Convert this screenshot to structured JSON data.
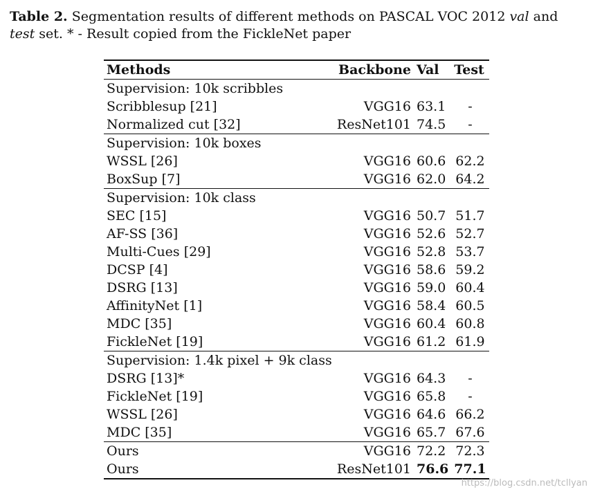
{
  "caption": {
    "label": "Table 2.",
    "text_1": " Segmentation results of different methods on PASCAL VOC 2012 ",
    "val_word": "val",
    "text_2": " and ",
    "test_word": "test",
    "text_3": " set. * - Result copied from the FickleNet paper"
  },
  "table": {
    "headers": {
      "methods": "Methods",
      "backbone": "Backbone",
      "val": "Val",
      "test": "Test"
    },
    "groups": [
      {
        "title": "Supervision: 10k scribbles",
        "rows": [
          {
            "method": "Scribblesup [21]",
            "backbone": "VGG16",
            "val": "63.1",
            "test": "-"
          },
          {
            "method": "Normalized cut [32]",
            "backbone": "ResNet101",
            "val": "74.5",
            "test": "-"
          }
        ]
      },
      {
        "title": "Supervision: 10k boxes",
        "rows": [
          {
            "method": "WSSL [26]",
            "backbone": "VGG16",
            "val": "60.6",
            "test": "62.2"
          },
          {
            "method": "BoxSup [7]",
            "backbone": "VGG16",
            "val": "62.0",
            "test": "64.2"
          }
        ]
      },
      {
        "title": "Supervision: 10k class",
        "rows": [
          {
            "method": "SEC [15]",
            "backbone": "VGG16",
            "val": "50.7",
            "test": "51.7"
          },
          {
            "method": "AF-SS [36]",
            "backbone": "VGG16",
            "val": "52.6",
            "test": "52.7"
          },
          {
            "method": "Multi-Cues [29]",
            "backbone": "VGG16",
            "val": "52.8",
            "test": "53.7"
          },
          {
            "method": "DCSP [4]",
            "backbone": "VGG16",
            "val": "58.6",
            "test": "59.2"
          },
          {
            "method": "DSRG [13]",
            "backbone": "VGG16",
            "val": "59.0",
            "test": "60.4"
          },
          {
            "method": "AffinityNet [1]",
            "backbone": "VGG16",
            "val": "58.4",
            "test": "60.5"
          },
          {
            "method": "MDC [35]",
            "backbone": "VGG16",
            "val": "60.4",
            "test": "60.8"
          },
          {
            "method": "FickleNet [19]",
            "backbone": "VGG16",
            "val": "61.2",
            "test": "61.9"
          }
        ]
      },
      {
        "title": "Supervision: 1.4k pixel + 9k class",
        "rows": [
          {
            "method": "DSRG [13]*",
            "backbone": "VGG16",
            "val": "64.3",
            "test": "-"
          },
          {
            "method": "FickleNet [19]",
            "backbone": "VGG16",
            "val": "65.8",
            "test": "-"
          },
          {
            "method": "WSSL [26]",
            "backbone": "VGG16",
            "val": "64.6",
            "test": "66.2"
          },
          {
            "method": "MDC [35]",
            "backbone": "VGG16",
            "val": "65.7",
            "test": "67.6"
          }
        ]
      }
    ],
    "ours": [
      {
        "method": "Ours",
        "backbone": "VGG16",
        "val": "72.2",
        "test": "72.3",
        "bold": false
      },
      {
        "method": "Ours",
        "backbone": "ResNet101",
        "val": "76.6",
        "test": "77.1",
        "bold": true
      }
    ]
  },
  "watermark": "https://blog.csdn.net/tcllyan"
}
